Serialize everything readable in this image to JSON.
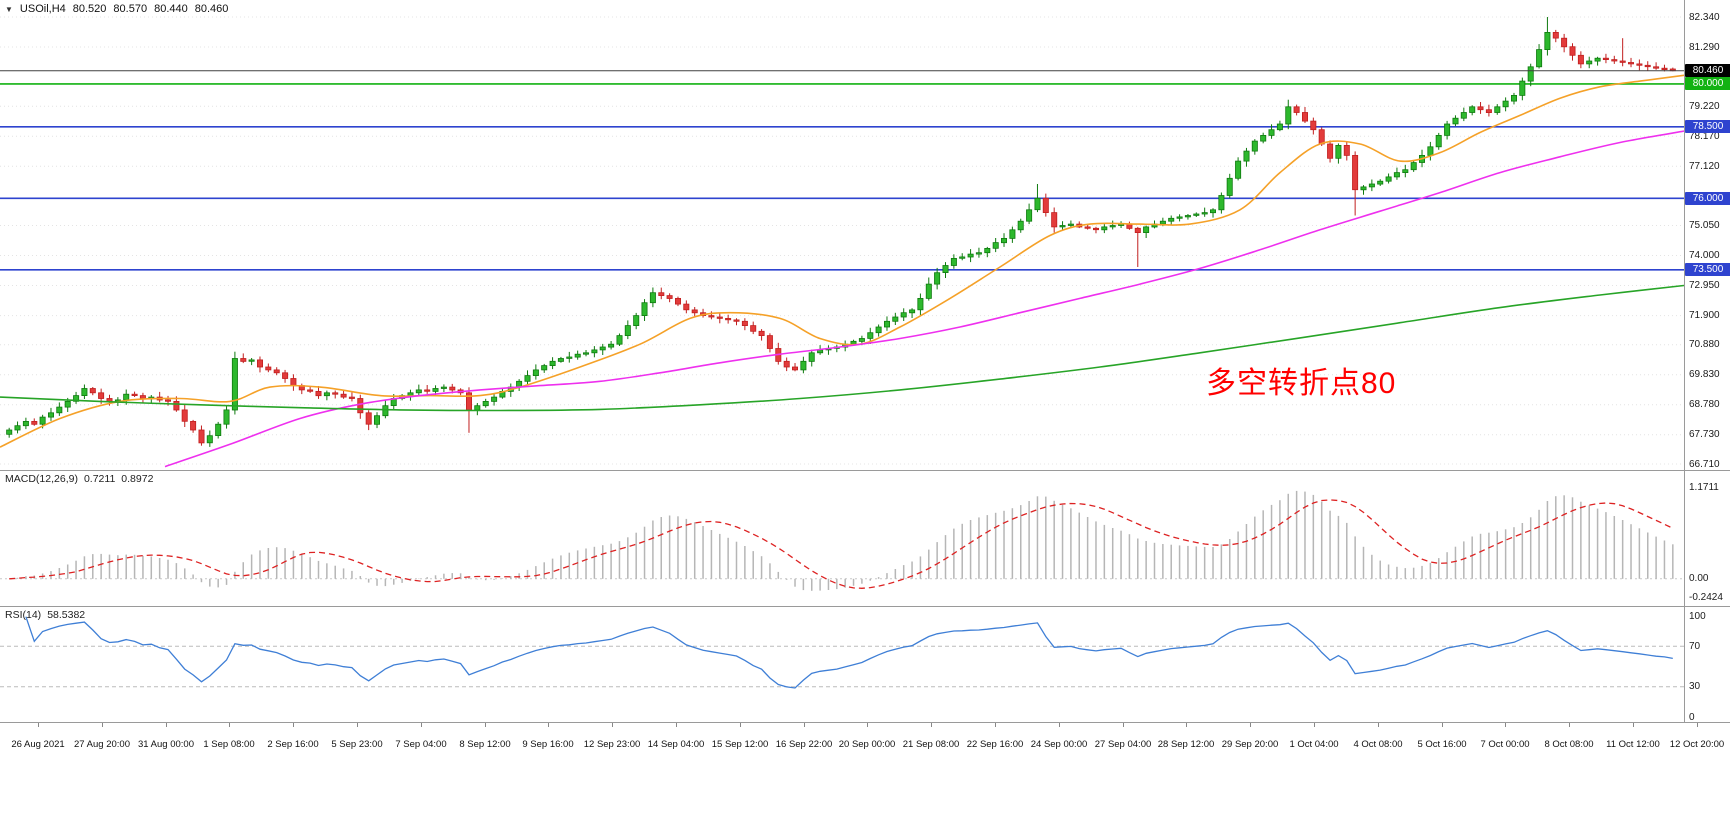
{
  "window": {
    "collapse_icon": "▼",
    "symbol_period": "USOil,H4",
    "open": "80.520",
    "high": "80.570",
    "low": "80.440",
    "close": "80.460"
  },
  "colors": {
    "up_fill": "#2DB82D",
    "up_border": "#0E7A0E",
    "down_fill": "#E23B3B",
    "down_border": "#C11F1F",
    "grid": "#E4E4E4",
    "current_line": "#404040",
    "current_tag_bg": "#000000",
    "macd_bar": "#B6B6B6",
    "macd_signal": "#DD2222",
    "rsi_line": "#3F7FD6",
    "rsi_level": "#BBBBBB",
    "text": "#1A1A1A"
  },
  "chart_data": {
    "type": "candlestick",
    "title": "USOil,H4",
    "symbol": "USOil",
    "timeframe": "H4",
    "current_bar": {
      "open": 80.52,
      "high": 80.57,
      "low": 80.44,
      "close": 80.46
    },
    "price_axis": {
      "max": 82.34,
      "min": 66.71,
      "ticks": [
        "82.340",
        "81.290",
        "79.220",
        "78.170",
        "77.120",
        "75.050",
        "74.000",
        "72.950",
        "71.900",
        "70.880",
        "69.830",
        "68.780",
        "67.730",
        "66.710"
      ]
    },
    "levels": [
      {
        "price": 80.0,
        "label": "80.000",
        "color": "#12B212"
      },
      {
        "price": 78.5,
        "label": "78.500",
        "color": "#2E43CF"
      },
      {
        "price": 76.0,
        "label": "76.000",
        "color": "#2E43CF"
      },
      {
        "price": 73.5,
        "label": "73.500",
        "color": "#2E43CF"
      }
    ],
    "current_price": {
      "value": 80.46,
      "label": "80.460"
    },
    "candles": {
      "first_open": 67.75,
      "closes": [
        67.9,
        68.05,
        68.2,
        68.1,
        68.35,
        68.5,
        68.7,
        68.9,
        69.1,
        69.35,
        69.2,
        69.0,
        68.9,
        68.95,
        69.15,
        69.1,
        69.0,
        69.05,
        68.95,
        68.9,
        68.6,
        68.2,
        67.9,
        67.45,
        67.7,
        68.1,
        68.6,
        70.4,
        70.3,
        70.35,
        70.1,
        70.0,
        69.9,
        69.7,
        69.45,
        69.3,
        69.25,
        69.1,
        69.2,
        69.15,
        69.05,
        69.0,
        68.5,
        68.1,
        68.4,
        68.75,
        69.0,
        69.1,
        69.2,
        69.3,
        69.25,
        69.35,
        69.4,
        69.3,
        69.2,
        68.6,
        68.75,
        68.9,
        69.05,
        69.25,
        69.4,
        69.6,
        69.8,
        70.0,
        70.15,
        70.3,
        70.4,
        70.45,
        70.55,
        70.6,
        70.7,
        70.8,
        70.9,
        71.2,
        71.55,
        71.9,
        72.35,
        72.7,
        72.6,
        72.5,
        72.3,
        72.1,
        72.0,
        71.9,
        71.85,
        71.8,
        71.75,
        71.7,
        71.55,
        71.35,
        71.2,
        70.75,
        70.3,
        70.1,
        70.0,
        70.3,
        70.6,
        70.7,
        70.75,
        70.8,
        70.9,
        71.0,
        71.1,
        71.3,
        71.5,
        71.7,
        71.85,
        72.0,
        72.1,
        72.5,
        73.0,
        73.4,
        73.65,
        73.9,
        73.95,
        74.05,
        74.1,
        74.25,
        74.45,
        74.6,
        74.9,
        75.2,
        75.6,
        76.0,
        75.5,
        75.0,
        75.05,
        75.1,
        75.0,
        74.95,
        74.9,
        75.0,
        75.05,
        75.1,
        74.95,
        74.8,
        75.0,
        75.1,
        75.2,
        75.3,
        75.35,
        75.4,
        75.45,
        75.5,
        75.6,
        76.1,
        76.7,
        77.3,
        77.65,
        78.0,
        78.2,
        78.4,
        78.6,
        79.2,
        79.0,
        78.7,
        78.4,
        77.9,
        77.4,
        77.85,
        77.5,
        76.3,
        76.4,
        76.5,
        76.6,
        76.75,
        76.9,
        77.0,
        77.25,
        77.5,
        77.8,
        78.2,
        78.6,
        78.8,
        79.0,
        79.2,
        79.1,
        79.0,
        79.2,
        79.4,
        79.6,
        80.1,
        80.6,
        81.2,
        81.8,
        81.6,
        81.3,
        81.0,
        80.7,
        80.8,
        80.9,
        80.85,
        80.8,
        80.75,
        80.7,
        80.65,
        80.6,
        80.55,
        80.52,
        80.46
      ],
      "wick_overrides": {
        "55": {
          "low": 67.8
        },
        "123": {
          "high": 76.5
        },
        "135": {
          "low": 73.6
        },
        "153": {
          "high": 79.45
        },
        "161": {
          "low": 75.4
        },
        "184": {
          "high": 82.34
        },
        "193": {
          "high": 81.6
        },
        "199": {
          "high": 80.57,
          "low": 80.44
        }
      }
    },
    "moving_averages": [
      {
        "name": "ma-fast-orange",
        "color": "#F5A128",
        "points": [
          [
            0,
            67.3
          ],
          [
            60,
            68.3
          ],
          [
            120,
            68.9
          ],
          [
            180,
            69.0
          ],
          [
            230,
            68.9
          ],
          [
            270,
            69.4
          ],
          [
            320,
            69.4
          ],
          [
            380,
            69.1
          ],
          [
            430,
            69.1
          ],
          [
            480,
            69.1
          ],
          [
            520,
            69.4
          ],
          [
            580,
            70.1
          ],
          [
            640,
            70.9
          ],
          [
            690,
            71.8
          ],
          [
            730,
            72.0
          ],
          [
            780,
            71.8
          ],
          [
            820,
            71.1
          ],
          [
            860,
            70.9
          ],
          [
            900,
            71.5
          ],
          [
            950,
            72.5
          ],
          [
            1000,
            73.6
          ],
          [
            1050,
            74.7
          ],
          [
            1090,
            75.1
          ],
          [
            1140,
            75.1
          ],
          [
            1190,
            75.1
          ],
          [
            1240,
            75.6
          ],
          [
            1280,
            76.9
          ],
          [
            1320,
            77.9
          ],
          [
            1360,
            77.9
          ],
          [
            1400,
            77.3
          ],
          [
            1440,
            77.6
          ],
          [
            1480,
            78.3
          ],
          [
            1520,
            78.9
          ],
          [
            1560,
            79.5
          ],
          [
            1600,
            79.9
          ],
          [
            1640,
            80.1
          ],
          [
            1684,
            80.3
          ]
        ]
      },
      {
        "name": "ma-mid-magenta",
        "color": "#EE30EE",
        "points": [
          [
            165,
            66.62
          ],
          [
            230,
            67.4
          ],
          [
            300,
            68.3
          ],
          [
            360,
            68.8
          ],
          [
            420,
            69.1
          ],
          [
            480,
            69.3
          ],
          [
            540,
            69.45
          ],
          [
            600,
            69.6
          ],
          [
            660,
            69.9
          ],
          [
            720,
            70.25
          ],
          [
            780,
            70.55
          ],
          [
            840,
            70.8
          ],
          [
            900,
            71.1
          ],
          [
            960,
            71.5
          ],
          [
            1020,
            72.0
          ],
          [
            1080,
            72.5
          ],
          [
            1140,
            73.0
          ],
          [
            1200,
            73.55
          ],
          [
            1260,
            74.2
          ],
          [
            1320,
            74.9
          ],
          [
            1380,
            75.55
          ],
          [
            1440,
            76.2
          ],
          [
            1500,
            76.9
          ],
          [
            1560,
            77.45
          ],
          [
            1620,
            77.95
          ],
          [
            1684,
            78.35
          ]
        ]
      },
      {
        "name": "ma-slow-green",
        "color": "#27A427",
        "points": [
          [
            0,
            69.05
          ],
          [
            100,
            68.9
          ],
          [
            200,
            68.78
          ],
          [
            300,
            68.68
          ],
          [
            400,
            68.6
          ],
          [
            500,
            68.58
          ],
          [
            600,
            68.62
          ],
          [
            700,
            68.78
          ],
          [
            800,
            69.0
          ],
          [
            900,
            69.3
          ],
          [
            1000,
            69.68
          ],
          [
            1100,
            70.1
          ],
          [
            1200,
            70.6
          ],
          [
            1300,
            71.12
          ],
          [
            1400,
            71.65
          ],
          [
            1500,
            72.18
          ],
          [
            1600,
            72.62
          ],
          [
            1684,
            72.95
          ]
        ]
      }
    ],
    "indicators": {
      "macd": {
        "name": "MACD(12,26,9)",
        "macd_value": "0.7211",
        "signal_value": "0.8972",
        "fast": 12,
        "slow": 26,
        "signal": 9,
        "axis_labels": [
          "1.1711",
          "0.00",
          "-0.2424"
        ],
        "display_range": [
          -0.3,
          1.3
        ]
      },
      "rsi": {
        "name": "RSI(14)",
        "value": "58.5382",
        "period": 14,
        "axis_labels": [
          "100",
          "70",
          "30",
          "0"
        ],
        "levels": [
          70,
          30
        ]
      }
    },
    "time_labels": [
      "26 Aug 2021",
      "27 Aug 20:00",
      "31 Aug 00:00",
      "1 Sep 08:00",
      "2 Sep 16:00",
      "5 Sep 23:00",
      "7 Sep 04:00",
      "8 Sep 12:00",
      "9 Sep 16:00",
      "12 Sep 23:00",
      "14 Sep 04:00",
      "15 Sep 12:00",
      "16 Sep 22:00",
      "20 Sep 00:00",
      "21 Sep 08:00",
      "22 Sep 16:00",
      "24 Sep 00:00",
      "27 Sep 04:00",
      "28 Sep 12:00",
      "29 Sep 20:00",
      "1 Oct 04:00",
      "4 Oct 08:00",
      "5 Oct 16:00",
      "7 Oct 00:00",
      "8 Oct 08:00",
      "11 Oct 12:00",
      "12 Oct 20:00"
    ],
    "annotation": {
      "text": "多空转折点80",
      "color": "#FF0000"
    }
  }
}
